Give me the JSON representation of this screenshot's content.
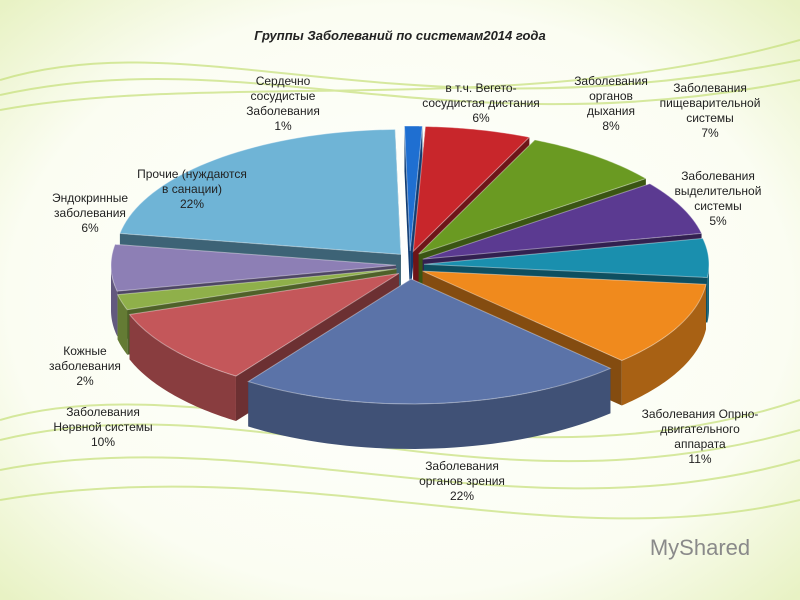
{
  "chart_data": {
    "type": "pie3d",
    "title": "Группы Заболеваний по системам2014 года",
    "categories": [
      "Сердечно\nсосудистые\nЗаболевания",
      "в т.ч. Вегето-\nсосудистая дистания",
      "Заболевания\nорганов\nдыхания",
      "Заболевания\nпищеварительной\nсистемы",
      "Заболевания\nвыделительной\nсистемы",
      "Заболевания Опрно-\nдвигательного\nаппарата",
      "Заболевания\nорганов зрения",
      "Заболевания\nНервной системы",
      "Кожные\nзаболевания",
      "Эндокринные\nзаболевания",
      "Прочие (нуждаются\nв санации)"
    ],
    "values": [
      1,
      6,
      8,
      7,
      5,
      11,
      22,
      10,
      2,
      6,
      22
    ],
    "value_labels": [
      "1%",
      "6%",
      "8%",
      "7%",
      "5%",
      "11%",
      "22%",
      "10%",
      "2%",
      "6%",
      "22%"
    ],
    "colors": [
      "#1f6fd1",
      "#c8262b",
      "#6a9a22",
      "#5b3a91",
      "#1a8fae",
      "#f08a1d",
      "#5b73a8",
      "#c4575a",
      "#8fb04a",
      "#8d7fb5",
      "#6fb4d6"
    ],
    "watermark": "MyShared"
  }
}
